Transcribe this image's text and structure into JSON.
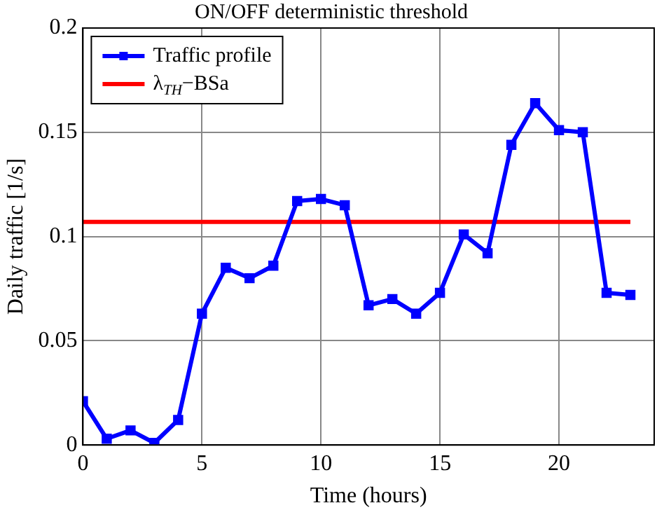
{
  "chart_data": {
    "type": "line",
    "title": "ON/OFF deterministic threshold",
    "xlabel": "Time (hours)",
    "ylabel": "Daily traffic [1/s]",
    "x": [
      0,
      1,
      2,
      3,
      4,
      5,
      6,
      7,
      8,
      9,
      10,
      11,
      12,
      13,
      14,
      15,
      16,
      17,
      18,
      19,
      20,
      21,
      22,
      23
    ],
    "series": [
      {
        "name": "Traffic profile",
        "color": "#0000ff",
        "marker": "square",
        "values": [
          0.021,
          0.003,
          0.007,
          0.001,
          0.012,
          0.063,
          0.085,
          0.08,
          0.086,
          0.117,
          0.118,
          0.115,
          0.067,
          0.07,
          0.063,
          0.073,
          0.101,
          0.092,
          0.144,
          0.164,
          0.151,
          0.15,
          0.073,
          0.072
        ]
      },
      {
        "name": "λ$_{TH}$−BSa",
        "color": "#ff0000",
        "marker": "none",
        "x": [
          0,
          23
        ],
        "values": [
          0.107,
          0.107
        ]
      }
    ],
    "xlim": [
      0,
      24
    ],
    "xticks": [
      0,
      5,
      10,
      15,
      20
    ],
    "ylim": [
      0,
      0.2
    ],
    "yticks": [
      0,
      0.05,
      0.1,
      0.15,
      0.2
    ],
    "grid": true,
    "legend": "top left"
  }
}
